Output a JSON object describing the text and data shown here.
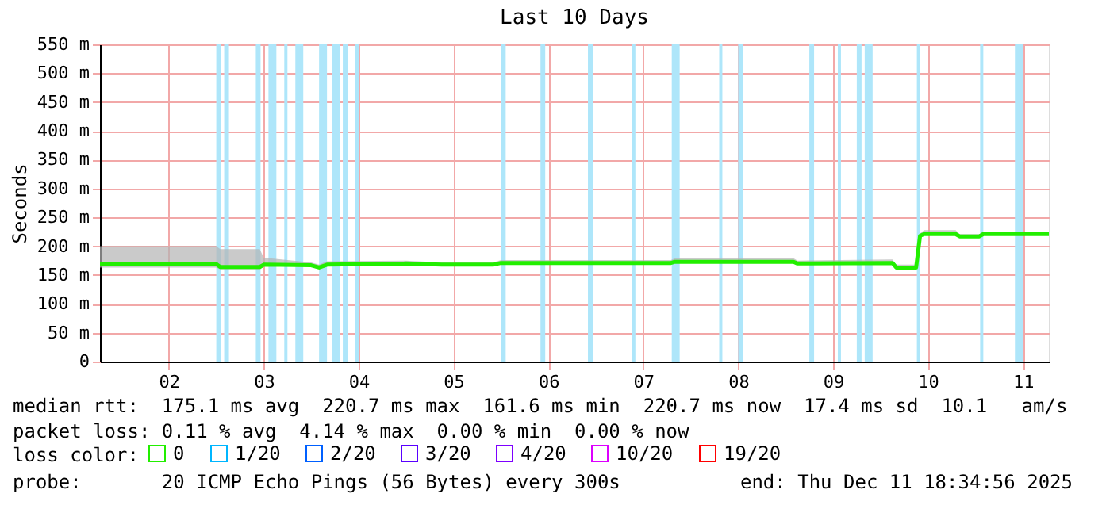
{
  "chart_data": {
    "type": "line",
    "title": "Last 10 Days",
    "ylabel": "Seconds",
    "legend_title": "loss color:",
    "legend": "bottom",
    "grid": true,
    "marker": "none",
    "line_style": "solid",
    "xlim": [
      "2025-12-01T18:35",
      "2025-12-11T18:35"
    ],
    "xticks": [
      {
        "value": "2025-12-02T12:00",
        "label": "02"
      },
      {
        "value": "2025-12-03T12:00",
        "label": "03"
      },
      {
        "value": "2025-12-04T12:00",
        "label": "04"
      },
      {
        "value": "2025-12-05T12:00",
        "label": "05"
      },
      {
        "value": "2025-12-06T12:00",
        "label": "06"
      },
      {
        "value": "2025-12-07T12:00",
        "label": "07"
      },
      {
        "value": "2025-12-08T12:00",
        "label": "08"
      },
      {
        "value": "2025-12-09T12:00",
        "label": "09"
      },
      {
        "value": "2025-12-10T12:00",
        "label": "10"
      },
      {
        "value": "2025-12-11T12:00",
        "label": "11"
      }
    ],
    "ylim": [
      0,
      550
    ],
    "yticks": [
      {
        "value": 0,
        "label": "0"
      },
      {
        "value": 50,
        "label": "50 m"
      },
      {
        "value": 100,
        "label": "100 m"
      },
      {
        "value": 150,
        "label": "150 m"
      },
      {
        "value": 200,
        "label": "200 m"
      },
      {
        "value": 250,
        "label": "250 m"
      },
      {
        "value": 300,
        "label": "300 m"
      },
      {
        "value": 350,
        "label": "350 m"
      },
      {
        "value": 400,
        "label": "400 m"
      },
      {
        "value": 450,
        "label": "450 m"
      },
      {
        "value": 500,
        "label": "500 m"
      },
      {
        "value": 550,
        "label": "550 m"
      }
    ],
    "series": [
      {
        "name": "0",
        "color": "#22ee00",
        "x": [
          "2025-12-01T18:35",
          "2025-12-03T00:00",
          "2025-12-03T01:00",
          "2025-12-03T11:00",
          "2025-12-03T12:00",
          "2025-12-04T00:00",
          "2025-12-04T02:00",
          "2025-12-04T04:00",
          "2025-12-05T00:00",
          "2025-12-05T09:00",
          "2025-12-05T22:00",
          "2025-12-06T00:00",
          "2025-12-07T19:00",
          "2025-12-07T20:00",
          "2025-12-09T02:00",
          "2025-12-09T03:00",
          "2025-12-10T03:00",
          "2025-12-10T04:00",
          "2025-12-10T09:00",
          "2025-12-10T10:00",
          "2025-12-10T11:00",
          "2025-12-10T19:00",
          "2025-12-10T20:00",
          "2025-12-11T01:00",
          "2025-12-11T02:00",
          "2025-12-11T18:35"
        ],
        "values": [
          169,
          169,
          164,
          164,
          168,
          167,
          163,
          168,
          170,
          168,
          168,
          171,
          171,
          173,
          173,
          170,
          171,
          163,
          163,
          218,
          221,
          221,
          217,
          217,
          221,
          221
        ],
        "lower": [
          163,
          163,
          160,
          160,
          165,
          165,
          161,
          166,
          168,
          166,
          166,
          169,
          169,
          171,
          171,
          168,
          169,
          161,
          161,
          216,
          219,
          219,
          215,
          215,
          219,
          219
        ],
        "upper": [
          200,
          200,
          195,
          195,
          180,
          172,
          168,
          174,
          175,
          172,
          172,
          176,
          176,
          179,
          179,
          175,
          177,
          168,
          168,
          222,
          228,
          228,
          221,
          221,
          225,
          225
        ]
      },
      {
        "name": "1/20",
        "color": "#00b6ff"
      },
      {
        "name": "2/20",
        "color": "#0060ff"
      },
      {
        "name": "3/20",
        "color": "#5a00ff"
      },
      {
        "name": "4/20",
        "color": "#7e00ff"
      },
      {
        "name": "10/20",
        "color": "#dd00ff"
      },
      {
        "name": "19/20",
        "color": "#ff0000"
      }
    ],
    "bands": [
      {
        "axis": "x",
        "from": "2025-12-03T00:00",
        "to": "2025-12-03T01:12",
        "color": "#aee6fa"
      },
      {
        "axis": "x",
        "from": "2025-12-03T02:00",
        "to": "2025-12-03T03:12",
        "color": "#aee6fa"
      },
      {
        "axis": "x",
        "from": "2025-12-03T10:00",
        "to": "2025-12-03T11:12",
        "color": "#aee6fa"
      },
      {
        "axis": "x",
        "from": "2025-12-03T13:12",
        "to": "2025-12-03T15:12",
        "color": "#aee6fa"
      },
      {
        "axis": "x",
        "from": "2025-12-03T17:12",
        "to": "2025-12-03T18:00",
        "color": "#aee6fa"
      },
      {
        "axis": "x",
        "from": "2025-12-03T20:00",
        "to": "2025-12-03T22:00",
        "color": "#aee6fa"
      },
      {
        "axis": "x",
        "from": "2025-12-04T02:00",
        "to": "2025-12-04T04:00",
        "color": "#aee6fa"
      },
      {
        "axis": "x",
        "from": "2025-12-04T05:12",
        "to": "2025-12-04T07:12",
        "color": "#aee6fa"
      },
      {
        "axis": "x",
        "from": "2025-12-04T08:00",
        "to": "2025-12-04T09:12",
        "color": "#aee6fa"
      },
      {
        "axis": "x",
        "from": "2025-12-04T11:12",
        "to": "2025-12-04T12:00",
        "color": "#aee6fa"
      },
      {
        "axis": "x",
        "from": "2025-12-06T00:00",
        "to": "2025-12-06T01:12",
        "color": "#aee6fa"
      },
      {
        "axis": "x",
        "from": "2025-12-06T10:00",
        "to": "2025-12-06T11:12",
        "color": "#aee6fa"
      },
      {
        "axis": "x",
        "from": "2025-12-06T22:00",
        "to": "2025-12-06T23:12",
        "color": "#aee6fa"
      },
      {
        "axis": "x",
        "from": "2025-12-07T09:12",
        "to": "2025-12-07T10:00",
        "color": "#aee6fa"
      },
      {
        "axis": "x",
        "from": "2025-12-07T19:12",
        "to": "2025-12-07T21:12",
        "color": "#aee6fa"
      },
      {
        "axis": "x",
        "from": "2025-12-08T07:12",
        "to": "2025-12-08T08:00",
        "color": "#aee6fa"
      },
      {
        "axis": "x",
        "from": "2025-12-08T12:00",
        "to": "2025-12-08T13:12",
        "color": "#aee6fa"
      },
      {
        "axis": "x",
        "from": "2025-12-09T06:00",
        "to": "2025-12-09T07:12",
        "color": "#aee6fa"
      },
      {
        "axis": "x",
        "from": "2025-12-09T13:12",
        "to": "2025-12-09T14:00",
        "color": "#aee6fa"
      },
      {
        "axis": "x",
        "from": "2025-12-09T18:00",
        "to": "2025-12-09T19:12",
        "color": "#aee6fa"
      },
      {
        "axis": "x",
        "from": "2025-12-09T20:00",
        "to": "2025-12-09T22:00",
        "color": "#aee6fa"
      },
      {
        "axis": "x",
        "from": "2025-12-10T09:12",
        "to": "2025-12-10T10:00",
        "color": "#aee6fa"
      },
      {
        "axis": "x",
        "from": "2025-12-11T01:12",
        "to": "2025-12-11T02:00",
        "color": "#aee6fa"
      },
      {
        "axis": "x",
        "from": "2025-12-11T10:00",
        "to": "2025-12-11T12:00",
        "color": "#aee6fa"
      }
    ],
    "annotations": [
      "median rtt:  175.1 ms avg  220.7 ms max  161.6 ms min  220.7 ms now  17.4 ms sd  10.1   am/s",
      "packet loss: 0.11 % avg  4.14 % max  0.00 % min  0.00 % now",
      "probe:       20 ICMP Echo Pings (56 Bytes) every 300s",
      "end: Thu Dec 11 18:34:56 2025"
    ]
  }
}
